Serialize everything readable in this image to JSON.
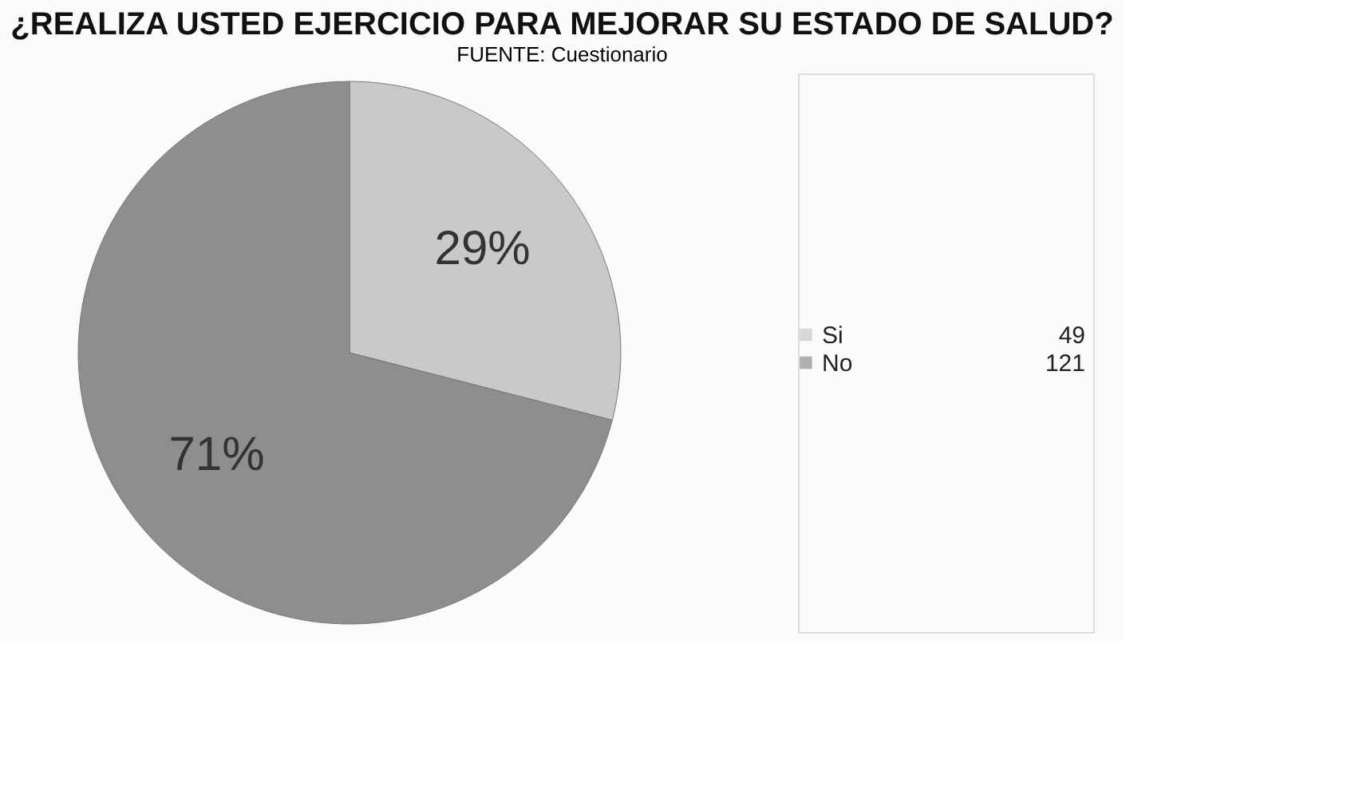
{
  "chart_data": {
    "type": "pie",
    "title": "¿REALIZA USTED EJERCICIO PARA MEJORAR SU ESTADO DE SALUD?",
    "categories": [
      "Si",
      "No"
    ],
    "values": [
      29,
      71
    ],
    "colors": [
      "#c9c9c9",
      "#8e8e8e"
    ],
    "value_labels": [
      "29%",
      "71%"
    ],
    "legend": "right",
    "annotations": [
      "49",
      "121",
      "FUENTE: Cuestionario"
    ]
  }
}
